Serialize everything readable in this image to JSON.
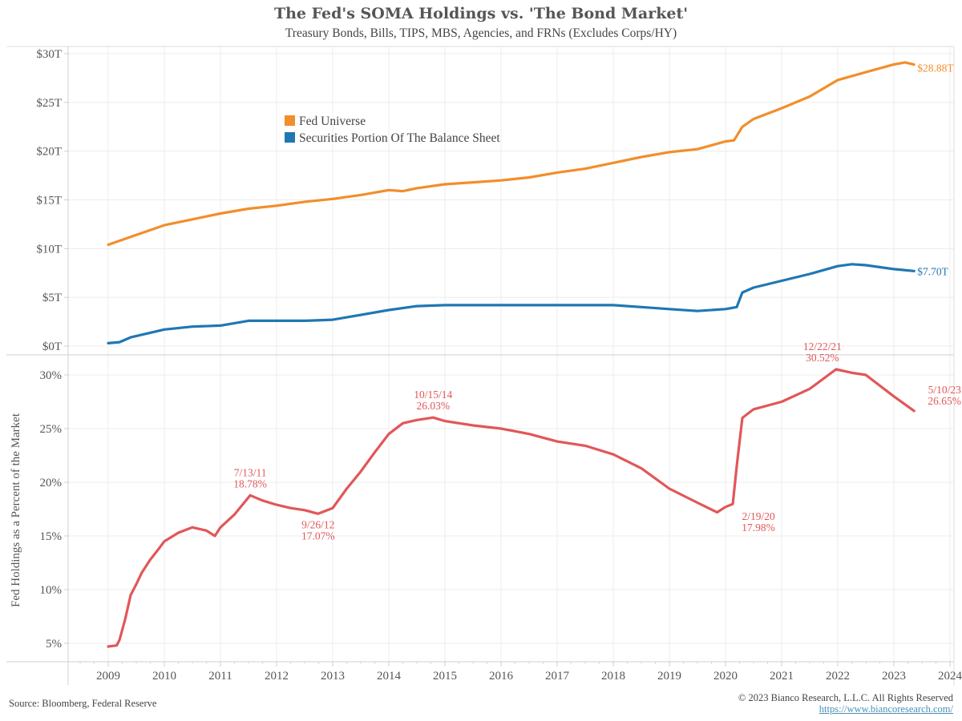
{
  "chart_data": [
    {
      "type": "line",
      "title": "The Fed's SOMA Holdings vs. 'The Bond Market'",
      "subtitle": "Treasury Bonds, Bills, TIPS, MBS, Agencies, and FRNs (Excludes Corps/HY)",
      "xlabel": "",
      "ylabel": "",
      "xlim": [
        2008.3,
        2024.1
      ],
      "ylim": [
        0,
        30
      ],
      "grid": true,
      "legend_position": "upper-left-center",
      "yticks": [
        0,
        5,
        10,
        15,
        20,
        25,
        30
      ],
      "ytick_labels": [
        "$0T",
        "$5T",
        "$10T",
        "$15T",
        "$20T",
        "$25T",
        "$30T"
      ],
      "series": [
        {
          "name": "Fed Universe",
          "color": "#f28e2b",
          "end_label": "$28.88T",
          "x": [
            2009.0,
            2009.5,
            2010.0,
            2010.5,
            2011.0,
            2011.5,
            2012.0,
            2012.5,
            2013.0,
            2013.5,
            2014.0,
            2014.25,
            2014.5,
            2015.0,
            2015.5,
            2016.0,
            2016.5,
            2017.0,
            2017.5,
            2018.0,
            2018.5,
            2019.0,
            2019.5,
            2020.0,
            2020.15,
            2020.3,
            2020.5,
            2021.0,
            2021.5,
            2022.0,
            2022.5,
            2023.0,
            2023.2,
            2023.36
          ],
          "values": [
            10.4,
            11.4,
            12.4,
            13.0,
            13.6,
            14.1,
            14.4,
            14.8,
            15.1,
            15.5,
            16.0,
            15.9,
            16.2,
            16.6,
            16.8,
            17.0,
            17.3,
            17.8,
            18.2,
            18.8,
            19.4,
            19.9,
            20.2,
            21.0,
            21.1,
            22.5,
            23.3,
            24.4,
            25.6,
            27.3,
            28.1,
            28.9,
            29.1,
            28.88
          ]
        },
        {
          "name": "Securities Portion Of The Balance Sheet",
          "color": "#1f77b4",
          "end_label": "$7.70T",
          "x": [
            2009.0,
            2009.2,
            2009.4,
            2010.0,
            2010.5,
            2011.0,
            2011.5,
            2012.0,
            2012.5,
            2013.0,
            2013.5,
            2014.0,
            2014.5,
            2015.0,
            2016.0,
            2017.0,
            2018.0,
            2018.5,
            2019.0,
            2019.5,
            2020.0,
            2020.2,
            2020.3,
            2020.5,
            2021.0,
            2021.5,
            2022.0,
            2022.25,
            2022.5,
            2023.0,
            2023.36
          ],
          "values": [
            0.3,
            0.4,
            0.9,
            1.7,
            2.0,
            2.1,
            2.6,
            2.6,
            2.6,
            2.7,
            3.2,
            3.7,
            4.1,
            4.2,
            4.2,
            4.2,
            4.2,
            4.0,
            3.8,
            3.6,
            3.8,
            4.0,
            5.5,
            6.0,
            6.7,
            7.4,
            8.2,
            8.4,
            8.3,
            7.9,
            7.7
          ]
        }
      ]
    },
    {
      "type": "line",
      "title": "",
      "xlabel": "",
      "ylabel": "Fed Holdings as a Percent of the Market",
      "xlim": [
        2008.3,
        2024.1
      ],
      "ylim": [
        3.3,
        31.8
      ],
      "grid": true,
      "yticks": [
        5,
        10,
        15,
        20,
        25,
        30
      ],
      "ytick_labels": [
        "5%",
        "10%",
        "15%",
        "20%",
        "25%",
        "30%"
      ],
      "xticks": [
        2009,
        2010,
        2011,
        2012,
        2013,
        2014,
        2015,
        2016,
        2017,
        2018,
        2019,
        2020,
        2021,
        2022,
        2023,
        2024
      ],
      "xtick_labels": [
        "2009",
        "2010",
        "2011",
        "2012",
        "2013",
        "2014",
        "2015",
        "2016",
        "2017",
        "2018",
        "2019",
        "2020",
        "2021",
        "2022",
        "2023",
        "2024"
      ],
      "series": [
        {
          "name": "Fed Holdings as a Percent of the Market",
          "color": "#e15759",
          "x": [
            2009.0,
            2009.15,
            2009.2,
            2009.3,
            2009.4,
            2009.5,
            2009.6,
            2009.75,
            2009.9,
            2010.0,
            2010.25,
            2010.5,
            2010.75,
            2010.9,
            2011.0,
            2011.25,
            2011.53,
            2011.75,
            2012.0,
            2012.25,
            2012.5,
            2012.74,
            2013.0,
            2013.25,
            2013.5,
            2013.75,
            2014.0,
            2014.25,
            2014.5,
            2014.79,
            2015.0,
            2015.5,
            2016.0,
            2016.5,
            2017.0,
            2017.5,
            2018.0,
            2018.5,
            2019.0,
            2019.5,
            2019.85,
            2020.0,
            2020.13,
            2020.2,
            2020.3,
            2020.5,
            2021.0,
            2021.5,
            2021.97,
            2022.25,
            2022.5,
            2023.0,
            2023.36
          ],
          "values": [
            4.7,
            4.8,
            5.3,
            7.2,
            9.5,
            10.5,
            11.6,
            12.8,
            13.8,
            14.5,
            15.3,
            15.8,
            15.5,
            15.0,
            15.8,
            17.0,
            18.78,
            18.3,
            17.9,
            17.6,
            17.4,
            17.07,
            17.6,
            19.4,
            21.0,
            22.8,
            24.5,
            25.5,
            25.8,
            26.03,
            25.7,
            25.3,
            25.0,
            24.5,
            23.8,
            23.4,
            22.6,
            21.3,
            19.4,
            18.1,
            17.2,
            17.7,
            17.98,
            21.5,
            26.0,
            26.8,
            27.5,
            28.7,
            30.52,
            30.2,
            30.0,
            28.0,
            26.65
          ]
        }
      ],
      "annotations": [
        {
          "date": "7/13/11",
          "value": "18.78%",
          "x": 2011.53,
          "y": 18.78,
          "position": "above"
        },
        {
          "date": "9/26/12",
          "value": "17.07%",
          "x": 2012.74,
          "y": 17.07,
          "position": "below"
        },
        {
          "date": "10/15/14",
          "value": "26.03%",
          "x": 2014.79,
          "y": 26.03,
          "position": "above"
        },
        {
          "date": "2/19/20",
          "value": "17.98%",
          "x": 2020.13,
          "y": 17.98,
          "position": "below-right"
        },
        {
          "date": "12/22/21",
          "value": "30.52%",
          "x": 2021.97,
          "y": 30.52,
          "position": "above-left"
        },
        {
          "date": "5/10/23",
          "value": "26.65%",
          "x": 2023.36,
          "y": 26.65,
          "position": "above-right"
        }
      ]
    }
  ],
  "header": {
    "title": "The Fed's SOMA Holdings vs. 'The Bond Market'",
    "subtitle": "Treasury Bonds, Bills, TIPS, MBS, Agencies, and FRNs (Excludes Corps/HY)"
  },
  "footer": {
    "source": "Source: Bloomberg, Federal Reserve",
    "copyright": "© 2023 Bianco Research, L.L.C. All Rights Reserved",
    "link": "https://www.biancoresearch.com/"
  }
}
